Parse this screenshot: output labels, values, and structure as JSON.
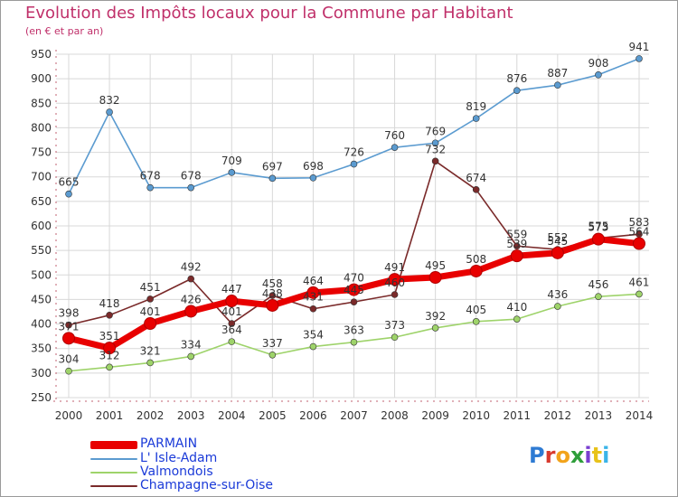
{
  "title": "Evolution des Impôts locaux pour la Commune par Habitant",
  "subtitle": "(en € et par an)",
  "logo": "Proxiti",
  "logo_colors": [
    "#2e7bd3",
    "#d83a2e",
    "#f2a31b",
    "#2e9e3a",
    "#7a3fd0",
    "#e8c21a",
    "#3ab4e8"
  ],
  "chart_data": {
    "type": "line",
    "x": [
      2000,
      2001,
      2002,
      2003,
      2004,
      2005,
      2006,
      2007,
      2008,
      2009,
      2010,
      2011,
      2012,
      2013,
      2014
    ],
    "x_ticks": [
      "2000",
      "2001",
      "2002",
      "2003",
      "2004",
      "2005",
      "2006",
      "2007",
      "2008",
      "2009",
      "2010",
      "2011",
      "2012",
      "2013",
      "2014"
    ],
    "ylim": [
      250,
      950
    ],
    "y_ticks": [
      "250",
      "300",
      "350",
      "400",
      "450",
      "500",
      "550",
      "600",
      "650",
      "700",
      "750",
      "800",
      "850",
      "900",
      "950"
    ],
    "grid": true,
    "legend_position": "bottom-left",
    "series": [
      {
        "name": "PARMAIN",
        "color": "#e80000",
        "emphasis": "bold",
        "values": [
          371,
          351,
          401,
          426,
          447,
          438,
          464,
          470,
          491,
          495,
          508,
          539,
          545,
          573,
          564
        ],
        "labels": [
          "371",
          "351",
          "401",
          "426",
          "447",
          "438",
          "464",
          "470",
          "491",
          "495",
          "508",
          "539",
          "545",
          "573",
          "564"
        ]
      },
      {
        "name": "L' Isle-Adam",
        "color": "#5b9bd0",
        "emphasis": "normal",
        "values": [
          665,
          832,
          678,
          678,
          709,
          697,
          698,
          726,
          760,
          769,
          819,
          876,
          887,
          908,
          941
        ],
        "labels": [
          "665",
          "832",
          "678",
          "678",
          "709",
          "697",
          "698",
          "726",
          "760",
          "769",
          "819",
          "876",
          "887",
          "908",
          "941"
        ]
      },
      {
        "name": "Valmondois",
        "color": "#9ed36a",
        "emphasis": "normal",
        "values": [
          304,
          312,
          321,
          334,
          364,
          337,
          354,
          363,
          373,
          392,
          405,
          410,
          436,
          456,
          461
        ],
        "labels": [
          "304",
          "312",
          "321",
          "334",
          "364",
          "337",
          "354",
          "363",
          "373",
          "392",
          "405",
          "410",
          "436",
          "456",
          "461"
        ]
      },
      {
        "name": "Champagne-sur-Oise",
        "color": "#7a2a2a",
        "emphasis": "normal",
        "values": [
          398,
          418,
          451,
          492,
          401,
          458,
          431,
          445,
          460,
          732,
          674,
          559,
          552,
          575,
          583
        ],
        "labels": [
          "398",
          "418",
          "451",
          "492",
          "401",
          "458",
          "431",
          "445",
          "460",
          "732",
          "674",
          "559",
          "552",
          "575",
          "583"
        ]
      }
    ]
  }
}
